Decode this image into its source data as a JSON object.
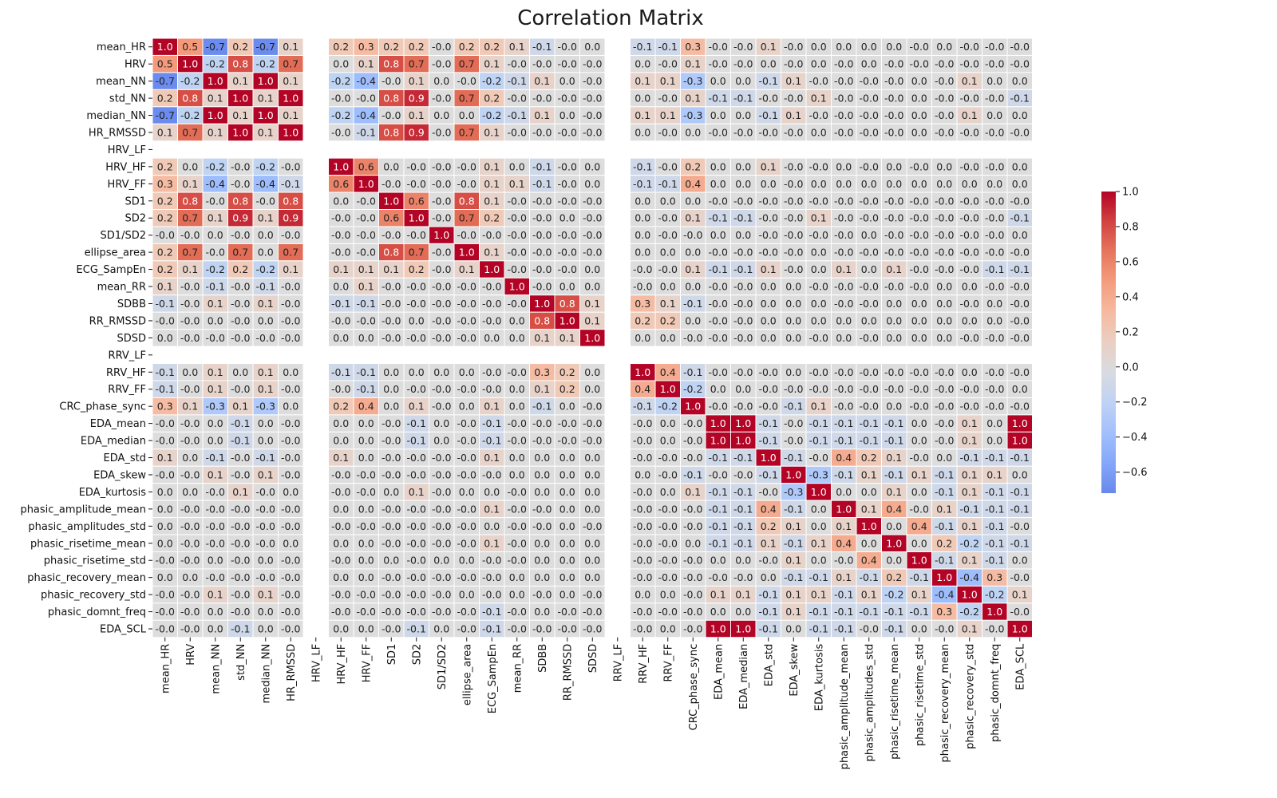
{
  "chart_data": {
    "type": "heatmap",
    "title": "Correlation Matrix",
    "labels": [
      "mean_HR",
      "HRV",
      "mean_NN",
      "std_NN",
      "median_NN",
      "HR_RMSSD",
      "HRV_LF",
      "HRV_HF",
      "HRV_FF",
      "SD1",
      "SD2",
      "SD1/SD2",
      "ellipse_area",
      "ECG_SampEn",
      "mean_RR",
      "SDBB",
      "RR_RMSSD",
      "SDSD",
      "RRV_LF",
      "RRV_HF",
      "RRV_FF",
      "CRC_phase_sync",
      "EDA_mean",
      "EDA_median",
      "EDA_std",
      "EDA_skew",
      "EDA_kurtosis",
      "phasic_amplitude_mean",
      "phasic_amplitudes_std",
      "phasic_risetime_mean",
      "phasic_risetime_std",
      "phasic_recovery_mean",
      "phasic_recovery_std",
      "phasic_domnt_freq",
      "EDA_SCL"
    ],
    "values": [
      [
        1.0,
        0.5,
        -0.7,
        0.2,
        -0.7,
        0.1,
        null,
        0.2,
        0.3,
        0.2,
        0.2,
        -0.0,
        0.2,
        0.2,
        0.1,
        -0.1,
        -0.0,
        0.0,
        null,
        -0.1,
        -0.1,
        0.3,
        -0.0,
        -0.0,
        0.1,
        -0.0,
        0.0,
        0.0,
        0.0,
        0.0,
        -0.0,
        0.0,
        -0.0,
        -0.0,
        -0.0
      ],
      [
        0.5,
        1.0,
        -0.2,
        0.8,
        -0.2,
        0.7,
        null,
        0.0,
        0.1,
        0.8,
        0.7,
        -0.0,
        0.7,
        0.1,
        -0.0,
        -0.0,
        -0.0,
        -0.0,
        null,
        0.0,
        -0.0,
        0.1,
        -0.0,
        -0.0,
        0.0,
        -0.0,
        0.0,
        -0.0,
        0.0,
        -0.0,
        -0.0,
        -0.0,
        -0.0,
        -0.0,
        -0.0
      ],
      [
        -0.7,
        -0.2,
        1.0,
        0.1,
        1.0,
        0.1,
        null,
        -0.2,
        -0.4,
        -0.0,
        0.1,
        0.0,
        -0.0,
        -0.2,
        -0.1,
        0.1,
        0.0,
        -0.0,
        null,
        0.1,
        0.1,
        -0.3,
        0.0,
        0.0,
        -0.1,
        0.1,
        -0.0,
        -0.0,
        -0.0,
        -0.0,
        0.0,
        -0.0,
        0.1,
        0.0,
        0.0
      ],
      [
        0.2,
        0.8,
        0.1,
        1.0,
        0.1,
        1.0,
        null,
        -0.0,
        -0.0,
        0.8,
        0.9,
        -0.0,
        0.7,
        0.2,
        -0.0,
        -0.0,
        -0.0,
        -0.0,
        null,
        0.0,
        -0.0,
        0.1,
        -0.1,
        -0.1,
        -0.0,
        -0.0,
        0.1,
        -0.0,
        -0.0,
        -0.0,
        0.0,
        -0.0,
        -0.0,
        -0.0,
        -0.1
      ],
      [
        -0.7,
        -0.2,
        1.0,
        0.1,
        1.0,
        0.1,
        null,
        -0.2,
        -0.4,
        -0.0,
        0.1,
        0.0,
        0.0,
        -0.2,
        -0.1,
        0.1,
        0.0,
        -0.0,
        null,
        0.1,
        0.1,
        -0.3,
        0.0,
        0.0,
        -0.1,
        0.1,
        -0.0,
        -0.0,
        -0.0,
        -0.0,
        0.0,
        -0.0,
        0.1,
        0.0,
        0.0
      ],
      [
        0.1,
        0.7,
        0.1,
        1.0,
        0.1,
        1.0,
        null,
        -0.0,
        -0.1,
        0.8,
        0.9,
        -0.0,
        0.7,
        0.1,
        -0.0,
        -0.0,
        -0.0,
        -0.0,
        null,
        0.0,
        -0.0,
        0.0,
        -0.0,
        -0.0,
        -0.0,
        -0.0,
        0.0,
        -0.0,
        -0.0,
        -0.0,
        0.0,
        -0.0,
        -0.0,
        -0.0,
        -0.0
      ],
      [
        null,
        null,
        null,
        null,
        null,
        null,
        null,
        null,
        null,
        null,
        null,
        null,
        null,
        null,
        null,
        null,
        null,
        null,
        null,
        null,
        null,
        null,
        null,
        null,
        null,
        null,
        null,
        null,
        null,
        null,
        null,
        null,
        null,
        null,
        null
      ],
      [
        0.2,
        0.0,
        -0.2,
        -0.0,
        -0.2,
        -0.0,
        null,
        1.0,
        0.6,
        0.0,
        -0.0,
        -0.0,
        -0.0,
        0.1,
        0.0,
        -0.1,
        -0.0,
        0.0,
        null,
        -0.1,
        -0.0,
        0.2,
        0.0,
        0.0,
        0.1,
        -0.0,
        -0.0,
        0.0,
        -0.0,
        0.0,
        -0.0,
        0.0,
        -0.0,
        -0.0,
        0.0
      ],
      [
        0.3,
        0.1,
        -0.4,
        -0.0,
        -0.4,
        -0.1,
        null,
        0.6,
        1.0,
        -0.0,
        -0.0,
        -0.0,
        -0.0,
        0.1,
        0.1,
        -0.1,
        -0.0,
        0.0,
        null,
        -0.1,
        -0.1,
        0.4,
        0.0,
        0.0,
        0.0,
        -0.0,
        0.0,
        0.0,
        0.0,
        0.0,
        0.0,
        0.0,
        0.0,
        0.0,
        0.0
      ],
      [
        0.2,
        0.8,
        -0.0,
        0.8,
        -0.0,
        0.8,
        null,
        0.0,
        -0.0,
        1.0,
        0.6,
        -0.0,
        0.8,
        0.1,
        -0.0,
        -0.0,
        -0.0,
        -0.0,
        null,
        0.0,
        0.0,
        0.0,
        -0.0,
        -0.0,
        -0.0,
        -0.0,
        -0.0,
        -0.0,
        -0.0,
        -0.0,
        -0.0,
        -0.0,
        -0.0,
        -0.0,
        -0.0
      ],
      [
        0.2,
        0.7,
        0.1,
        0.9,
        0.1,
        0.9,
        null,
        -0.0,
        -0.0,
        0.6,
        1.0,
        -0.0,
        0.7,
        0.2,
        -0.0,
        -0.0,
        0.0,
        -0.0,
        null,
        0.0,
        -0.0,
        0.1,
        -0.1,
        -0.1,
        -0.0,
        -0.0,
        0.1,
        -0.0,
        -0.0,
        -0.0,
        -0.0,
        -0.0,
        -0.0,
        -0.0,
        -0.1
      ],
      [
        -0.0,
        -0.0,
        0.0,
        -0.0,
        0.0,
        -0.0,
        null,
        -0.0,
        -0.0,
        -0.0,
        -0.0,
        1.0,
        -0.0,
        -0.0,
        -0.0,
        -0.0,
        -0.0,
        -0.0,
        null,
        0.0,
        -0.0,
        -0.0,
        0.0,
        0.0,
        -0.0,
        -0.0,
        -0.0,
        -0.0,
        0.0,
        -0.0,
        -0.0,
        -0.0,
        -0.0,
        -0.0,
        0.0
      ],
      [
        0.2,
        0.7,
        -0.0,
        0.7,
        0.0,
        0.7,
        null,
        -0.0,
        -0.0,
        0.8,
        0.7,
        -0.0,
        1.0,
        0.1,
        -0.0,
        -0.0,
        -0.0,
        -0.0,
        null,
        0.0,
        0.0,
        0.0,
        -0.0,
        -0.0,
        -0.0,
        -0.0,
        0.0,
        -0.0,
        -0.0,
        -0.0,
        -0.0,
        -0.0,
        -0.0,
        -0.0,
        -0.0
      ],
      [
        0.2,
        0.1,
        -0.2,
        0.2,
        -0.2,
        0.1,
        null,
        0.1,
        0.1,
        0.1,
        0.2,
        -0.0,
        0.1,
        1.0,
        -0.0,
        -0.0,
        -0.0,
        0.0,
        null,
        -0.0,
        -0.0,
        0.1,
        -0.1,
        -0.1,
        0.1,
        -0.0,
        0.0,
        0.1,
        0.0,
        0.1,
        -0.0,
        -0.0,
        -0.0,
        -0.1,
        -0.1
      ],
      [
        0.1,
        -0.0,
        -0.1,
        -0.0,
        -0.1,
        -0.0,
        null,
        0.0,
        0.1,
        -0.0,
        -0.0,
        -0.0,
        -0.0,
        -0.0,
        1.0,
        -0.0,
        0.0,
        0.0,
        null,
        -0.0,
        0.0,
        0.0,
        -0.0,
        -0.0,
        0.0,
        0.0,
        -0.0,
        -0.0,
        -0.0,
        -0.0,
        -0.0,
        0.0,
        0.0,
        -0.0,
        -0.0
      ],
      [
        -0.1,
        -0.0,
        0.1,
        -0.0,
        0.1,
        -0.0,
        null,
        -0.1,
        -0.1,
        -0.0,
        -0.0,
        -0.0,
        -0.0,
        -0.0,
        -0.0,
        1.0,
        0.8,
        0.1,
        null,
        0.3,
        0.1,
        -0.1,
        -0.0,
        -0.0,
        0.0,
        0.0,
        0.0,
        -0.0,
        -0.0,
        0.0,
        0.0,
        0.0,
        -0.0,
        0.0,
        -0.0
      ],
      [
        -0.0,
        -0.0,
        0.0,
        -0.0,
        0.0,
        -0.0,
        null,
        -0.0,
        -0.0,
        -0.0,
        0.0,
        -0.0,
        -0.0,
        -0.0,
        0.0,
        0.8,
        1.0,
        0.1,
        null,
        0.2,
        0.2,
        0.0,
        -0.0,
        -0.0,
        0.0,
        0.0,
        0.0,
        0.0,
        0.0,
        0.0,
        0.0,
        0.0,
        0.0,
        0.0,
        -0.0
      ],
      [
        0.0,
        -0.0,
        -0.0,
        -0.0,
        -0.0,
        -0.0,
        null,
        0.0,
        0.0,
        -0.0,
        -0.0,
        -0.0,
        -0.0,
        0.0,
        0.0,
        0.1,
        0.1,
        1.0,
        null,
        0.0,
        0.0,
        -0.0,
        -0.0,
        -0.0,
        0.0,
        0.0,
        -0.0,
        0.0,
        -0.0,
        0.0,
        0.0,
        0.0,
        -0.0,
        -0.0,
        -0.0
      ],
      [
        null,
        null,
        null,
        null,
        null,
        null,
        null,
        null,
        null,
        null,
        null,
        null,
        null,
        null,
        null,
        null,
        null,
        null,
        null,
        null,
        null,
        null,
        null,
        null,
        null,
        null,
        null,
        null,
        null,
        null,
        null,
        null,
        null,
        null,
        null
      ],
      [
        -0.1,
        0.0,
        0.1,
        0.0,
        0.1,
        0.0,
        null,
        -0.1,
        -0.1,
        0.0,
        0.0,
        0.0,
        0.0,
        -0.0,
        -0.0,
        0.3,
        0.2,
        0.0,
        null,
        1.0,
        0.4,
        -0.1,
        -0.0,
        -0.0,
        -0.0,
        0.0,
        -0.0,
        -0.0,
        -0.0,
        -0.0,
        -0.0,
        -0.0,
        0.0,
        -0.0,
        -0.0
      ],
      [
        -0.1,
        -0.0,
        0.1,
        -0.0,
        0.1,
        -0.0,
        null,
        -0.0,
        -0.1,
        0.0,
        -0.0,
        -0.0,
        -0.0,
        -0.0,
        0.0,
        0.1,
        0.2,
        0.0,
        null,
        0.4,
        1.0,
        -0.2,
        0.0,
        0.0,
        -0.0,
        -0.0,
        -0.0,
        -0.0,
        -0.0,
        -0.0,
        -0.0,
        -0.0,
        -0.0,
        -0.0,
        0.0
      ],
      [
        0.3,
        0.1,
        -0.3,
        0.1,
        -0.3,
        0.0,
        null,
        0.2,
        0.4,
        0.0,
        0.1,
        -0.0,
        0.0,
        0.1,
        0.0,
        -0.1,
        0.0,
        -0.0,
        null,
        -0.1,
        -0.2,
        1.0,
        -0.0,
        -0.0,
        -0.0,
        -0.1,
        0.1,
        -0.0,
        -0.0,
        0.0,
        -0.0,
        -0.0,
        -0.0,
        -0.0,
        -0.0
      ],
      [
        -0.0,
        -0.0,
        0.0,
        -0.1,
        0.0,
        -0.0,
        null,
        0.0,
        0.0,
        -0.0,
        -0.1,
        0.0,
        -0.0,
        -0.1,
        -0.0,
        -0.0,
        -0.0,
        -0.0,
        null,
        -0.0,
        0.0,
        -0.0,
        1.0,
        1.0,
        -0.1,
        -0.0,
        -0.1,
        -0.1,
        -0.1,
        -0.1,
        0.0,
        -0.0,
        0.1,
        0.0,
        1.0
      ],
      [
        -0.0,
        -0.0,
        0.0,
        -0.1,
        0.0,
        -0.0,
        null,
        0.0,
        0.0,
        -0.0,
        -0.1,
        0.0,
        -0.0,
        -0.1,
        -0.0,
        -0.0,
        -0.0,
        -0.0,
        null,
        -0.0,
        0.0,
        -0.0,
        1.0,
        1.0,
        -0.1,
        -0.0,
        -0.1,
        -0.1,
        -0.1,
        -0.1,
        0.0,
        -0.0,
        0.1,
        0.0,
        1.0
      ],
      [
        0.1,
        0.0,
        -0.1,
        -0.0,
        -0.1,
        -0.0,
        null,
        0.1,
        0.0,
        -0.0,
        -0.0,
        -0.0,
        -0.0,
        0.1,
        0.0,
        0.0,
        0.0,
        0.0,
        null,
        -0.0,
        -0.0,
        -0.0,
        -0.1,
        -0.1,
        1.0,
        -0.1,
        -0.0,
        0.4,
        0.2,
        0.1,
        -0.0,
        0.0,
        -0.1,
        -0.1,
        -0.1
      ],
      [
        -0.0,
        -0.0,
        0.1,
        -0.0,
        0.1,
        -0.0,
        null,
        -0.0,
        -0.0,
        -0.0,
        -0.0,
        -0.0,
        -0.0,
        -0.0,
        0.0,
        0.0,
        0.0,
        0.0,
        null,
        0.0,
        -0.0,
        -0.1,
        -0.0,
        -0.0,
        -0.1,
        1.0,
        -0.3,
        -0.1,
        0.1,
        -0.1,
        0.1,
        -0.1,
        0.1,
        0.1,
        0.0
      ],
      [
        0.0,
        0.0,
        -0.0,
        0.1,
        -0.0,
        0.0,
        null,
        -0.0,
        -0.0,
        0.0,
        0.1,
        -0.0,
        0.0,
        0.0,
        -0.0,
        0.0,
        0.0,
        0.0,
        null,
        -0.0,
        0.0,
        0.1,
        -0.1,
        -0.1,
        -0.0,
        -0.3,
        1.0,
        0.0,
        0.0,
        0.1,
        0.0,
        -0.1,
        0.1,
        -0.1,
        -0.1
      ],
      [
        0.0,
        -0.0,
        -0.0,
        -0.0,
        -0.0,
        -0.0,
        null,
        0.0,
        0.0,
        -0.0,
        -0.0,
        -0.0,
        -0.0,
        0.1,
        -0.0,
        -0.0,
        0.0,
        0.0,
        null,
        -0.0,
        -0.0,
        -0.0,
        -0.1,
        -0.1,
        0.4,
        -0.1,
        0.0,
        1.0,
        0.1,
        0.4,
        -0.0,
        0.1,
        -0.1,
        -0.1,
        -0.1
      ],
      [
        0.0,
        -0.0,
        -0.0,
        -0.0,
        -0.0,
        -0.0,
        null,
        -0.0,
        -0.0,
        -0.0,
        -0.0,
        -0.0,
        -0.0,
        0.0,
        -0.0,
        -0.0,
        0.0,
        -0.0,
        null,
        -0.0,
        -0.0,
        -0.0,
        -0.1,
        -0.1,
        0.2,
        0.1,
        0.0,
        0.1,
        1.0,
        0.0,
        0.4,
        -0.1,
        0.1,
        -0.1,
        -0.0
      ],
      [
        0.0,
        -0.0,
        -0.0,
        -0.0,
        -0.0,
        0.0,
        null,
        0.0,
        0.0,
        -0.0,
        -0.0,
        -0.0,
        -0.0,
        0.1,
        -0.0,
        0.0,
        0.0,
        0.0,
        null,
        -0.0,
        -0.0,
        0.0,
        -0.1,
        -0.1,
        0.1,
        -0.1,
        0.1,
        0.4,
        0.0,
        1.0,
        0.0,
        0.2,
        -0.2,
        -0.1,
        -0.1
      ],
      [
        -0.0,
        -0.0,
        0.0,
        -0.0,
        0.0,
        -0.0,
        null,
        -0.0,
        0.0,
        0.0,
        -0.0,
        0.0,
        0.0,
        -0.0,
        -0.0,
        0.0,
        0.0,
        0.0,
        null,
        -0.0,
        -0.0,
        -0.0,
        0.0,
        0.0,
        -0.0,
        0.1,
        0.0,
        -0.0,
        0.4,
        0.0,
        1.0,
        -0.1,
        0.1,
        -0.1,
        0.0
      ],
      [
        0.0,
        0.0,
        -0.0,
        -0.0,
        -0.0,
        -0.0,
        null,
        0.0,
        0.0,
        -0.0,
        -0.0,
        -0.0,
        -0.0,
        -0.0,
        0.0,
        0.0,
        0.0,
        0.0,
        null,
        -0.0,
        -0.0,
        -0.0,
        -0.0,
        -0.0,
        0.0,
        -0.1,
        -0.1,
        0.1,
        -0.1,
        0.2,
        -0.1,
        1.0,
        -0.4,
        0.3,
        -0.0
      ],
      [
        -0.0,
        -0.0,
        0.1,
        -0.0,
        0.1,
        -0.0,
        null,
        -0.0,
        -0.0,
        -0.0,
        -0.0,
        -0.0,
        0.0,
        -0.0,
        0.0,
        -0.0,
        0.0,
        -0.0,
        null,
        0.0,
        0.0,
        -0.0,
        0.1,
        0.1,
        -0.1,
        0.1,
        0.1,
        -0.1,
        0.1,
        -0.2,
        0.1,
        -0.4,
        1.0,
        -0.2,
        0.1
      ],
      [
        -0.0,
        -0.0,
        0.0,
        -0.0,
        0.0,
        -0.0,
        null,
        -0.0,
        -0.0,
        -0.0,
        -0.0,
        -0.0,
        -0.0,
        -0.1,
        -0.0,
        0.0,
        -0.0,
        -0.0,
        null,
        -0.0,
        -0.0,
        -0.0,
        0.0,
        0.0,
        -0.1,
        0.1,
        -0.1,
        -0.1,
        -0.1,
        -0.1,
        -0.1,
        0.3,
        -0.2,
        1.0,
        -0.0
      ],
      [
        -0.0,
        -0.0,
        0.0,
        -0.1,
        0.0,
        -0.0,
        null,
        0.0,
        0.0,
        -0.0,
        -0.1,
        0.0,
        -0.0,
        -0.1,
        -0.0,
        -0.0,
        -0.0,
        -0.0,
        null,
        -0.0,
        0.0,
        -0.0,
        1.0,
        1.0,
        -0.1,
        0.0,
        -0.1,
        -0.1,
        -0.0,
        -0.1,
        0.0,
        -0.0,
        0.1,
        -0.0,
        1.0
      ]
    ],
    "colormap": "coolwarm",
    "vmin": -0.72,
    "vmax": 1.0,
    "annotation_format": "0.1f",
    "missing_cells": "blank",
    "colorbar": {
      "ticks": [
        1.0,
        0.8,
        0.6,
        0.4,
        0.2,
        0.0,
        -0.2,
        -0.4,
        -0.6
      ],
      "tick_labels": [
        "1.0",
        "0.8",
        "0.6",
        "0.4",
        "0.2",
        "0.0",
        "−0.2",
        "−0.4",
        "−0.6"
      ],
      "placement": "right"
    }
  }
}
